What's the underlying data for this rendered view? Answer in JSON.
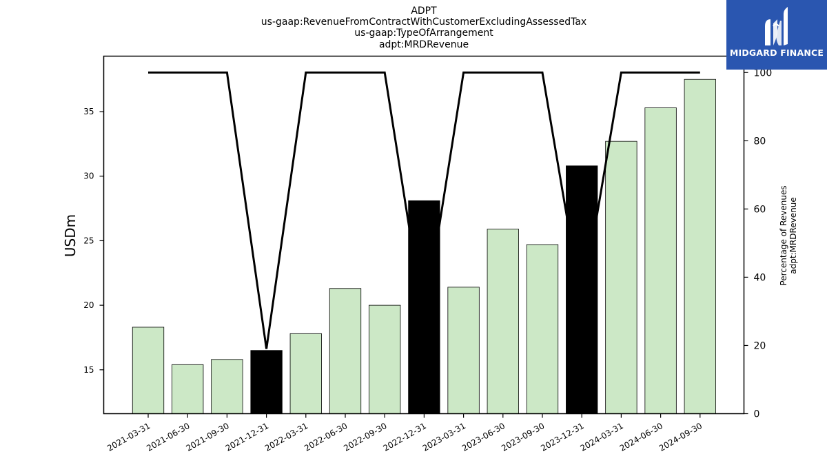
{
  "brand": {
    "name": "MIDGARD FINANCE",
    "bg_color": "#2a56b0",
    "mark": "midgard-logo-icon"
  },
  "chart_data": {
    "type": "bar",
    "title_lines": [
      "ADPT",
      "us-gaap:RevenueFromContractWithCustomerExcludingAssessedTax",
      "us-gaap:TypeOfArrangement",
      "adpt:MRDRevenue"
    ],
    "categories": [
      "2021-03-31",
      "2021-06-30",
      "2021-09-30",
      "2021-12-31",
      "2022-03-31",
      "2022-06-30",
      "2022-09-30",
      "2022-12-31",
      "2023-03-31",
      "2023-06-30",
      "2023-09-30",
      "2023-12-31",
      "2024-03-31",
      "2024-06-30",
      "2024-09-30"
    ],
    "series": [
      {
        "axis": "left",
        "chart_type": "bar",
        "values": [
          18.3,
          15.4,
          15.8,
          16.5,
          17.8,
          21.3,
          20.0,
          28.1,
          21.4,
          25.9,
          24.7,
          30.8,
          32.7,
          35.3,
          37.5
        ],
        "highlight": [
          false,
          false,
          false,
          true,
          false,
          false,
          false,
          true,
          false,
          false,
          false,
          true,
          false,
          false,
          false
        ]
      },
      {
        "axis": "right",
        "chart_type": "line",
        "values": [
          100,
          100,
          100,
          19,
          100,
          100,
          100,
          27,
          100,
          100,
          100,
          32,
          100,
          100,
          100
        ]
      }
    ],
    "ylabel": "USDm",
    "ylabel_right": [
      "Percentage of Revenues",
      "adpt:MRDRevenue"
    ],
    "ylim": [
      11.6,
      39.3
    ],
    "yticks": [
      15,
      20,
      25,
      30,
      35
    ],
    "ylim_right": [
      0,
      104.8
    ],
    "yticks_right": [
      0,
      20,
      40,
      60,
      80,
      100
    ],
    "colors": {
      "bar": "#cce8c6",
      "bar_highlight": "#000000",
      "bar_edge": "#000000",
      "line": "#000000"
    },
    "grid": false,
    "legend": "none"
  }
}
